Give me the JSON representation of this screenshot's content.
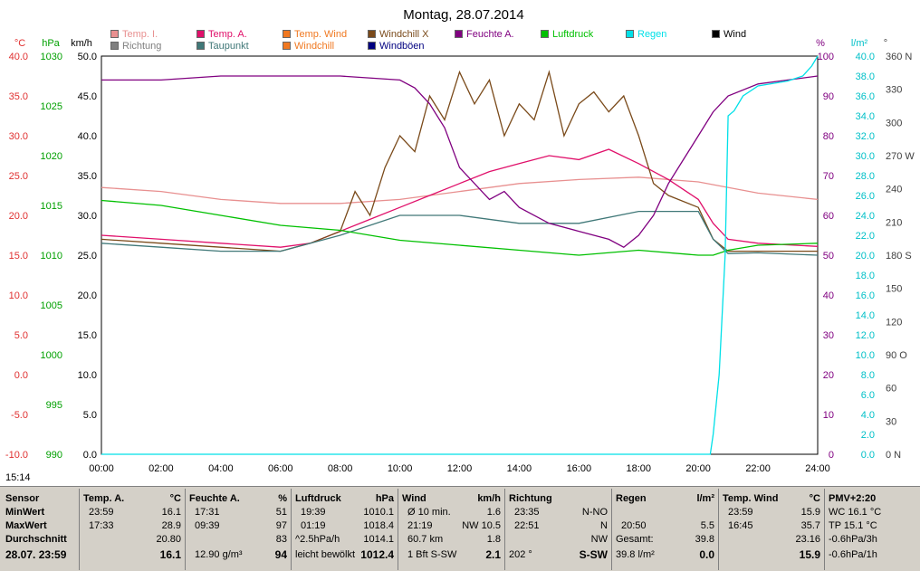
{
  "title": "Montag, 28.07.2014",
  "time_label": "15:14",
  "legend": [
    {
      "label": "Temp. I.",
      "color": "#e89090"
    },
    {
      "label": "Temp. A.",
      "color": "#e0106a"
    },
    {
      "label": "Temp. Wind",
      "color": "#f07820"
    },
    {
      "label": "Windchill X",
      "color": "#7a4a1a"
    },
    {
      "label": "Feuchte A.",
      "color": "#800080"
    },
    {
      "label": "Luftdruck",
      "color": "#00c000"
    },
    {
      "label": "Regen",
      "color": "#00e0e8"
    },
    {
      "label": "Wind",
      "color": "#000000"
    },
    {
      "label": "Richtung",
      "color": "#808080"
    },
    {
      "label": "Taupunkt",
      "color": "#407878"
    },
    {
      "label": "Windchill",
      "color": "#f07820"
    },
    {
      "label": "Windböen",
      "color": "#000080"
    }
  ],
  "axis_units": {
    "temp": "°C",
    "pressure": "hPa",
    "wind": "km/h",
    "humidity": "%",
    "rain": "l/m²",
    "direction": "°"
  },
  "colors": {
    "temp_axis": "#e03030",
    "pressure_axis": "#00a000",
    "wind_axis": "#000000",
    "humidity_axis": "#800080",
    "rain_axis": "#00c0c8",
    "direction_axis": "#404040",
    "panel_bg": "#d4d0c8"
  },
  "chart_data": {
    "type": "line",
    "title": "Montag, 28.07.2014",
    "x_ticks": [
      "00:00",
      "02:00",
      "04:00",
      "06:00",
      "08:00",
      "10:00",
      "12:00",
      "14:00",
      "16:00",
      "18:00",
      "20:00",
      "22:00",
      "24:00"
    ],
    "xlim": [
      "00:00",
      "24:00"
    ],
    "axes": {
      "temp": {
        "unit": "°C",
        "ylim": [
          -10,
          40
        ],
        "ticks": [
          "40.0",
          "35.0",
          "30.0",
          "25.0",
          "20.0",
          "15.0",
          "10.0",
          "5.0",
          "0.0",
          "-5.0",
          "-10.0"
        ]
      },
      "pressure": {
        "unit": "hPa",
        "ylim": [
          990,
          1030
        ],
        "ticks": [
          "1030",
          "1025",
          "1020",
          "1015",
          "1010",
          "1005",
          "1000",
          "995",
          "990"
        ]
      },
      "wind": {
        "unit": "km/h",
        "ylim": [
          0,
          50
        ],
        "ticks": [
          "50.0",
          "45.0",
          "40.0",
          "35.0",
          "30.0",
          "25.0",
          "20.0",
          "15.0",
          "10.0",
          "5.0",
          "0.0"
        ]
      },
      "humidity": {
        "unit": "%",
        "ylim": [
          0,
          100
        ],
        "ticks": [
          "100",
          "90",
          "80",
          "70",
          "60",
          "50",
          "40",
          "30",
          "20",
          "10",
          "0"
        ]
      },
      "rain": {
        "unit": "l/m²",
        "ylim": [
          0,
          40
        ],
        "ticks": [
          "40.0",
          "38.0",
          "36.0",
          "34.0",
          "32.0",
          "30.0",
          "28.0",
          "26.0",
          "24.0",
          "22.0",
          "20.0",
          "18.0",
          "16.0",
          "14.0",
          "12.0",
          "10.0",
          "8.0",
          "6.0",
          "4.0",
          "2.0",
          "0.0"
        ]
      },
      "direction": {
        "unit": "°",
        "ylim": [
          0,
          360
        ],
        "ticks": [
          "360 N",
          "330",
          "300",
          "270 W",
          "240",
          "210",
          "180 S",
          "150",
          "120",
          "90 O",
          "60",
          "30",
          "0 N"
        ]
      }
    },
    "series": [
      {
        "name": "Temp. I.",
        "axis": "temp",
        "color": "#e89090",
        "x": [
          0,
          2,
          4,
          6,
          8,
          10,
          12,
          14,
          16,
          18,
          20,
          22,
          24
        ],
        "y": [
          23.5,
          23.0,
          22.0,
          21.5,
          21.5,
          22.0,
          23.0,
          24.0,
          24.5,
          24.8,
          24.2,
          22.8,
          22.0
        ]
      },
      {
        "name": "Temp. A.",
        "axis": "temp",
        "color": "#e0106a",
        "x": [
          0,
          2,
          4,
          6,
          7,
          8,
          9,
          10,
          11,
          12,
          13,
          14,
          15,
          16,
          17,
          18,
          19,
          20,
          20.5,
          21,
          22,
          24
        ],
        "y": [
          17.5,
          17.0,
          16.5,
          16.0,
          16.5,
          18.0,
          19.5,
          21.0,
          22.5,
          24.0,
          25.5,
          26.5,
          27.5,
          27.0,
          28.3,
          26.5,
          24.5,
          22.0,
          19.0,
          17.0,
          16.5,
          16.1
        ]
      },
      {
        "name": "Windchill X",
        "axis": "temp",
        "color": "#7a4a1a",
        "x": [
          0,
          2,
          4,
          6,
          7,
          8,
          8.5,
          9,
          9.5,
          10,
          10.5,
          11,
          11.5,
          12,
          12.5,
          13,
          13.5,
          14,
          14.5,
          15,
          15.5,
          16,
          16.5,
          17,
          17.5,
          18,
          18.5,
          19,
          20,
          20.5,
          21,
          22,
          24
        ],
        "y": [
          17.0,
          16.5,
          16.0,
          15.5,
          16.5,
          18.0,
          23.0,
          20.0,
          26.0,
          30.0,
          28.0,
          35.0,
          32.0,
          38.0,
          34.0,
          37.0,
          30.0,
          34.0,
          32.0,
          38.0,
          30.0,
          34.0,
          35.5,
          33.0,
          35.0,
          30.0,
          24.0,
          22.5,
          21.0,
          17.0,
          15.5,
          15.5,
          15.5
        ]
      },
      {
        "name": "Taupunkt",
        "axis": "temp",
        "color": "#407878",
        "x": [
          0,
          2,
          4,
          6,
          8,
          10,
          12,
          14,
          16,
          18,
          20,
          20.5,
          21,
          22,
          24
        ],
        "y": [
          16.5,
          16.0,
          15.5,
          15.5,
          17.5,
          20.0,
          20.0,
          19.0,
          19.0,
          20.5,
          20.5,
          17.0,
          15.2,
          15.3,
          15.0
        ]
      },
      {
        "name": "Feuchte A.",
        "axis": "humidity",
        "color": "#800080",
        "x": [
          0,
          2,
          4,
          6,
          8,
          10,
          10.5,
          11,
          11.5,
          12,
          12.5,
          13,
          13.5,
          14,
          15,
          16,
          17,
          17.5,
          18,
          18.5,
          19,
          19.5,
          20,
          20.5,
          21,
          22,
          23,
          24
        ],
        "y": [
          94,
          94,
          95,
          95,
          95,
          94,
          92,
          88,
          82,
          72,
          68,
          64,
          66,
          62,
          58,
          56,
          54,
          52,
          55,
          60,
          68,
          74,
          80,
          86,
          90,
          93,
          94,
          95
        ]
      },
      {
        "name": "Luftdruck",
        "axis": "pressure",
        "color": "#00c000",
        "x": [
          0,
          2,
          4,
          6,
          8,
          10,
          12,
          14,
          16,
          18,
          20,
          20.5,
          21,
          22,
          24
        ],
        "y": [
          1015.5,
          1015.0,
          1014.0,
          1013.0,
          1012.5,
          1011.5,
          1011.0,
          1010.5,
          1010.0,
          1010.5,
          1010.0,
          1010.0,
          1010.5,
          1011.0,
          1011.2
        ]
      },
      {
        "name": "Regen",
        "axis": "rain",
        "color": "#00e0e8",
        "x": [
          0,
          20.4,
          20.5,
          20.7,
          20.9,
          21.0,
          21.2,
          21.5,
          22,
          23,
          23.5,
          23.8,
          24
        ],
        "y": [
          0,
          0,
          2,
          8,
          20,
          34,
          34.5,
          36,
          37,
          37.5,
          38.0,
          39.0,
          40.0
        ]
      }
    ]
  },
  "panel": {
    "labels": {
      "header": "Sensor",
      "min": "MinWert",
      "max": "MaxWert",
      "avg": "Durchschnitt",
      "date": "28.07. 23:59"
    },
    "temp_a": {
      "title": "Temp. A.",
      "unit": "°C",
      "min_time": "23:59",
      "min_val": "16.1",
      "max_time": "17:33",
      "max_val": "28.9",
      "avg": "20.80",
      "current": "16.1"
    },
    "humidity": {
      "title": "Feuchte A.",
      "unit": "%",
      "min_time": "17:31",
      "min_val": "51",
      "max_time": "09:39",
      "max_val": "97",
      "avg": "83",
      "current_extra": "12.90 g/m³",
      "current": "94"
    },
    "pressure": {
      "title": "Luftdruck",
      "unit": "hPa",
      "min_time": "19:39",
      "min_val": "1010.1",
      "max_time": "01:19",
      "max_val": "1018.4",
      "avg_extra": "^2.5hPa/h",
      "avg": "1014.1",
      "current_extra": "leicht bewölkt",
      "current": "1012.4"
    },
    "wind": {
      "title": "Wind",
      "unit": "km/h",
      "min_time": "Ø 10 min.",
      "min_val": "1.6",
      "max_time": "21:19",
      "max_val": "NW 10.5",
      "avg_extra": "60.7 km",
      "avg": "1.8",
      "current_extra": "1 Bft S-SW",
      "current": "2.1"
    },
    "direction": {
      "title": "Richtung",
      "min_time": "23:35",
      "min_val": "N-NO",
      "max_time": "22:51",
      "max_val": "N",
      "avg": "NW",
      "current_extra": "202 °",
      "current": "S-SW"
    },
    "rain": {
      "title": "Regen",
      "unit": "l/m²",
      "max_time": "20:50",
      "max_val": "5.5",
      "avg_extra": "Gesamt:",
      "avg": "39.8",
      "current_extra": "39.8 l/m²",
      "current": "0.0"
    },
    "temp_wind": {
      "title": "Temp. Wind",
      "unit": "°C",
      "min_time": "23:59",
      "min_val": "15.9",
      "max_time": "16:45",
      "max_val": "35.7",
      "avg": "23.16",
      "current": "15.9"
    },
    "pmv": {
      "title": "PMV+2:20",
      "line1": "WC 16.1 °C",
      "line2": "TP 15.1 °C",
      "line3": "-0.6hPa/3h",
      "line4": "-0.6hPa/1h"
    }
  }
}
